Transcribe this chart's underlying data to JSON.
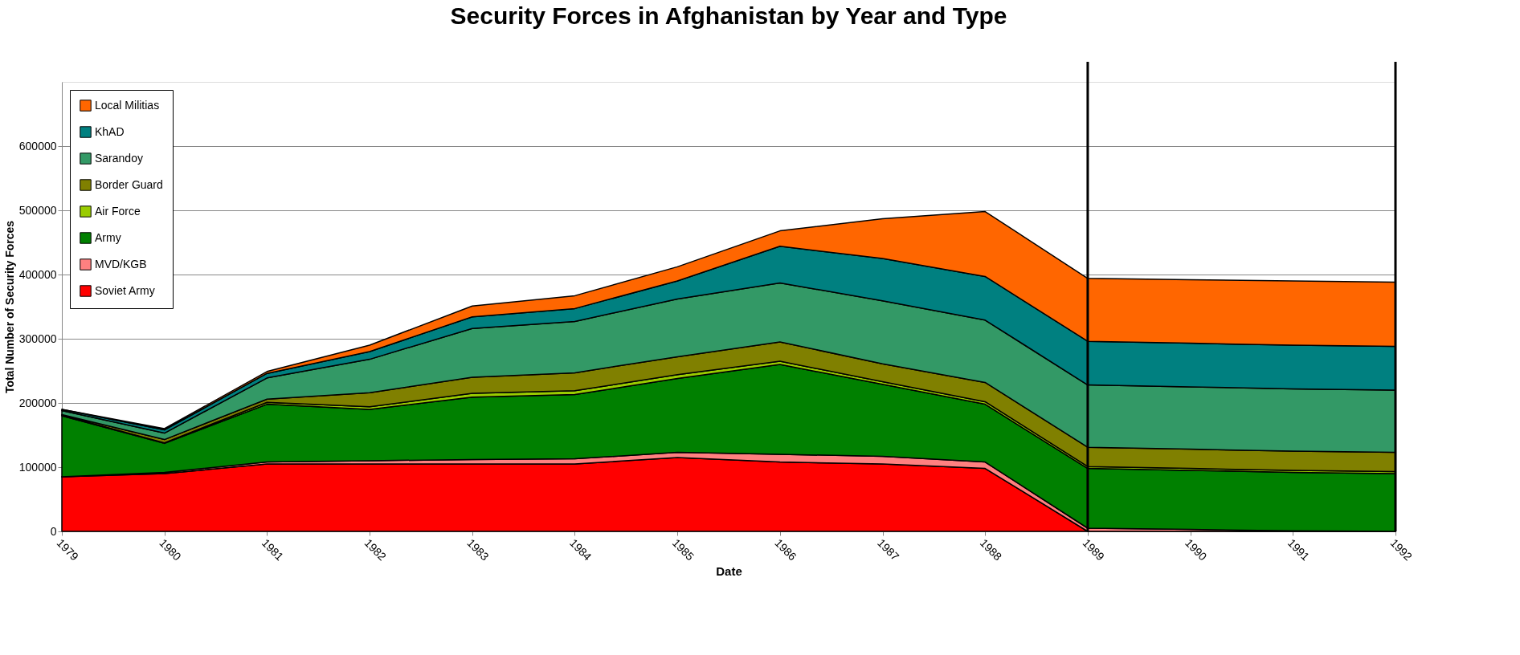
{
  "chart_data": {
    "type": "area",
    "title": "Security Forces in Afghanistan by Year and Type",
    "xlabel": "Date",
    "ylabel": "Total Number of Security Forces",
    "x": [
      1979,
      1980,
      1981,
      1982,
      1983,
      1984,
      1985,
      1986,
      1987,
      1988,
      1989,
      1990,
      1991,
      1992
    ],
    "stacked": true,
    "series": [
      {
        "name": "Soviet Army",
        "color": "#ff0000",
        "values": [
          85000,
          90000,
          105000,
          105000,
          105000,
          105000,
          115000,
          108000,
          105000,
          98000,
          0,
          0,
          0,
          0
        ]
      },
      {
        "name": "MVD/KGB",
        "color": "#ff8080",
        "values": [
          0,
          2000,
          3000,
          5000,
          7000,
          8000,
          8000,
          12000,
          12000,
          10000,
          5000,
          3000,
          1000,
          0
        ]
      },
      {
        "name": "Army",
        "color": "#008000",
        "values": [
          95000,
          45000,
          90000,
          80000,
          97000,
          100000,
          115000,
          140000,
          112000,
          90000,
          93000,
          92000,
          91000,
          90000
        ]
      },
      {
        "name": "Air Force",
        "color": "#99cc00",
        "values": [
          1000,
          1000,
          3000,
          4000,
          6000,
          6000,
          6000,
          5000,
          4000,
          4000,
          3000,
          3000,
          3000,
          3000
        ]
      },
      {
        "name": "Border Guard",
        "color": "#808000",
        "values": [
          1000,
          5000,
          5000,
          22000,
          25000,
          28000,
          28000,
          30000,
          28000,
          30000,
          30000,
          30000,
          30000,
          30000
        ]
      },
      {
        "name": "Sarandoy",
        "color": "#339966",
        "values": [
          6000,
          10000,
          33000,
          52000,
          76000,
          80000,
          90000,
          92000,
          98000,
          97000,
          97000,
          97000,
          97000,
          97000
        ]
      },
      {
        "name": "KhAD",
        "color": "#008080",
        "values": [
          2000,
          5000,
          7000,
          12000,
          18000,
          20000,
          28000,
          57000,
          66000,
          68000,
          68000,
          68000,
          68000,
          68000
        ]
      },
      {
        "name": "Local Militias",
        "color": "#ff6600",
        "values": [
          0,
          2000,
          3000,
          10000,
          17000,
          20000,
          22000,
          24000,
          62000,
          101000,
          98000,
          99000,
          100000,
          100000
        ]
      }
    ],
    "xlim": [
      1979,
      1992
    ],
    "xticks": [
      1979,
      1980,
      1981,
      1982,
      1983,
      1984,
      1985,
      1986,
      1987,
      1988,
      1989,
      1990,
      1991,
      1992
    ],
    "ylim": [
      0,
      700000
    ],
    "yticks": [
      0,
      100000,
      200000,
      300000,
      400000,
      500000,
      600000
    ],
    "ref_lines": [
      {
        "axis": "x",
        "value": 1989,
        "color": "#000000"
      },
      {
        "axis": "x",
        "value": 1992,
        "color": "#000000"
      }
    ],
    "grid": "y",
    "legend": "top left"
  }
}
